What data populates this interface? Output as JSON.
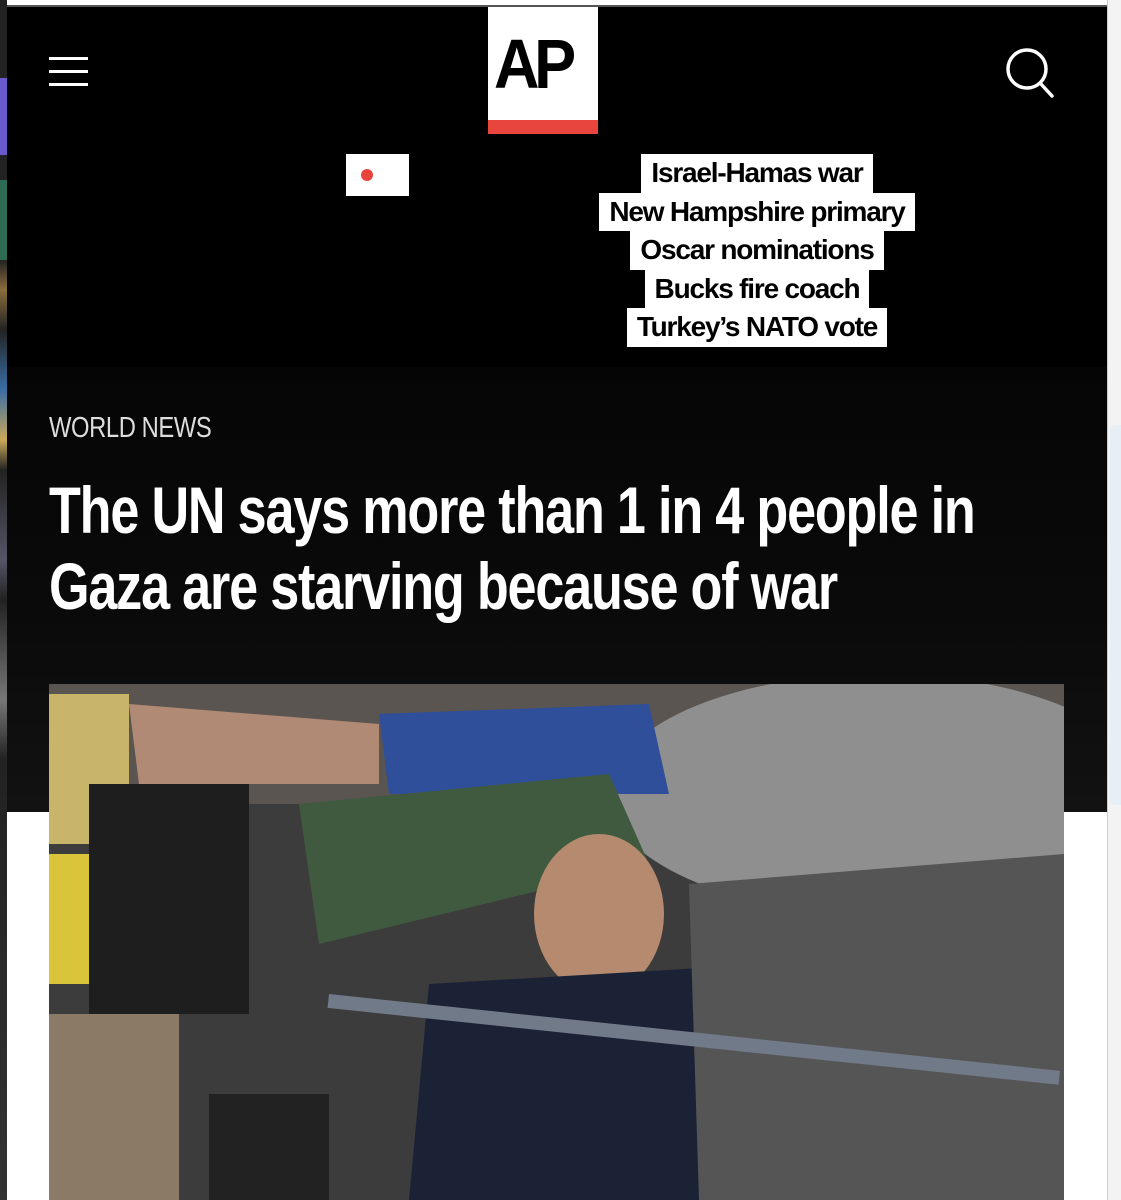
{
  "header": {
    "logo_text": "AP",
    "menu_icon": "hamburger-menu-icon",
    "search_icon": "search-icon",
    "live_indicator_icon": "live-dot-icon"
  },
  "trending": [
    {
      "label": "Israel-Hamas war"
    },
    {
      "label": "New Hampshire primary"
    },
    {
      "label": "Oscar nominations"
    },
    {
      "label": "Bucks fire coach"
    },
    {
      "label": "Turkey’s NATO vote"
    }
  ],
  "article": {
    "section": "WORLD NEWS",
    "headline": "The UN says more than 1 in 4 people in Gaza are starving because of war"
  },
  "colors": {
    "brand_red": "#e8453c",
    "background": "#000000"
  }
}
